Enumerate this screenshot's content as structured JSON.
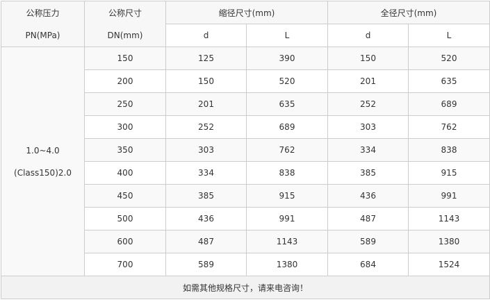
{
  "header": {
    "pressure": [
      "公称压力",
      "PN(MPa)"
    ],
    "size": [
      "公称尺寸",
      "DN(mm)"
    ],
    "reduced": "缩径尺寸(mm)",
    "full": "全径尺寸(mm)",
    "sub": [
      "d",
      "L",
      "d",
      "L"
    ]
  },
  "merged": [
    "1.0~4.0",
    "(Class150)2.0"
  ],
  "table": {
    "rows": [
      [
        150,
        125,
        390,
        150,
        520
      ],
      [
        200,
        150,
        520,
        201,
        635
      ],
      [
        250,
        201,
        635,
        252,
        689
      ],
      [
        300,
        252,
        689,
        303,
        762
      ],
      [
        350,
        303,
        762,
        334,
        838
      ],
      [
        400,
        334,
        838,
        385,
        915
      ],
      [
        450,
        385,
        915,
        436,
        991
      ],
      [
        500,
        436,
        991,
        487,
        1143
      ],
      [
        600,
        487,
        1143,
        589,
        1380
      ],
      [
        700,
        589,
        1380,
        684,
        1524
      ]
    ]
  },
  "footer": "如需其他规格尺寸，请来电咨询！"
}
